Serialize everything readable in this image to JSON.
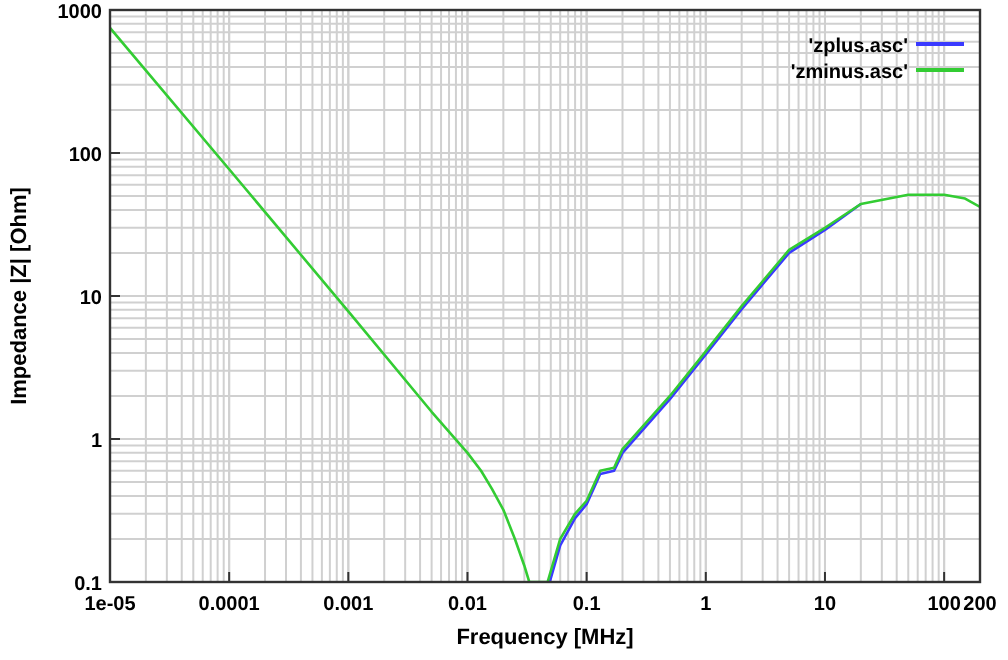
{
  "chart_data": {
    "type": "line",
    "xlabel": "Frequency [MHz]",
    "ylabel": "Impedance |Z| [Ohm]",
    "log": "xy",
    "grid": true,
    "legend": "top right",
    "xlim": [
      1e-05,
      200
    ],
    "xticks": [
      {
        "value": 1e-05,
        "label": "1e-05"
      },
      0.0001,
      0.001,
      0.01,
      0.1,
      1,
      10,
      100,
      200
    ],
    "ylim": [
      0.1,
      1000
    ],
    "yticks": [
      0.1,
      1,
      10,
      100,
      1000
    ],
    "series": [
      {
        "name": "'zplus.asc'",
        "color": "#3a3aff",
        "x": [
          0.049,
          0.06,
          0.08,
          0.1,
          0.13,
          0.17,
          0.2,
          0.5,
          1,
          2,
          5,
          10,
          20
        ],
        "values": [
          0.1,
          0.18,
          0.28,
          0.35,
          0.57,
          0.6,
          0.8,
          1.9,
          3.9,
          8.1,
          20,
          29,
          44
        ]
      },
      {
        "name": "'zminus.asc'",
        "color": "#33cc33",
        "x": [
          1e-05,
          0.0001,
          0.001,
          0.005,
          0.01,
          0.013,
          0.016,
          0.02,
          0.025,
          0.03,
          0.033,
          0.047,
          0.06,
          0.08,
          0.1,
          0.13,
          0.17,
          0.2,
          0.5,
          1,
          2,
          5,
          10,
          20,
          50,
          100,
          150,
          200
        ],
        "values": [
          750,
          77,
          7.8,
          1.55,
          0.8,
          0.6,
          0.45,
          0.32,
          0.2,
          0.13,
          0.1,
          0.1,
          0.2,
          0.3,
          0.37,
          0.6,
          0.63,
          0.85,
          2.0,
          4.1,
          8.5,
          21,
          30,
          44,
          51,
          51,
          48,
          42
        ]
      }
    ]
  }
}
